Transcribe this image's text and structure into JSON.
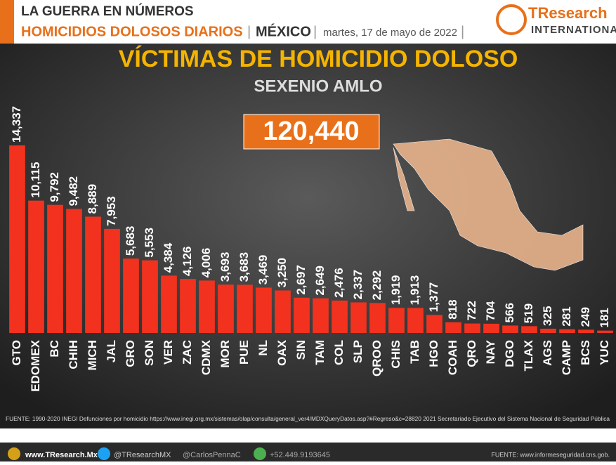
{
  "header": {
    "kicker": "LA GUERRA EN NÚMEROS",
    "topic": "HOMICIDIOS DOLOSOS DIARIOS",
    "country": "MÉXICO",
    "date": "martes, 17 de mayo de 2022",
    "logo": "TResearch",
    "logo_sub": "INTERNATIONAL"
  },
  "chart_data": {
    "type": "bar",
    "title": "VÍCTIMAS DE HOMICIDIO DOLOSO",
    "subtitle": "SEXENIO AMLO",
    "total": "120,440",
    "categories": [
      "GTO",
      "EDOMEX",
      "BC",
      "CHIH",
      "MICH",
      "JAL",
      "GRO",
      "SON",
      "VER",
      "ZAC",
      "CDMX",
      "MOR",
      "PUE",
      "NL",
      "OAX",
      "SIN",
      "TAM",
      "COL",
      "SLP",
      "QROO",
      "CHIS",
      "TAB",
      "HGO",
      "COAH",
      "QRO",
      "NAY",
      "DGO",
      "TLAX",
      "AGS",
      "CAMP",
      "BCS",
      "YUC"
    ],
    "values": [
      14337,
      10115,
      9792,
      9482,
      8889,
      7953,
      5683,
      5553,
      4384,
      4126,
      4006,
      3693,
      3683,
      3469,
      3250,
      2697,
      2649,
      2476,
      2337,
      2292,
      1919,
      1913,
      1377,
      818,
      722,
      704,
      566,
      519,
      325,
      281,
      249,
      181
    ],
    "value_labels": [
      "14,337",
      "10,115",
      "9,792",
      "9,482",
      "8,889",
      "7,953",
      "5,683",
      "5,553",
      "4,384",
      "4,126",
      "4,006",
      "3,693",
      "3,683",
      "3,469",
      "3,250",
      "2,697",
      "2,649",
      "2,476",
      "2,337",
      "2,292",
      "1,919",
      "1,913",
      "1,377",
      "818",
      "722",
      "704",
      "566",
      "519",
      "325",
      "281",
      "249",
      "181"
    ],
    "color": "#f2321e",
    "source": "FUENTE: 1990-2020 INEGI Defunciones por homicidio https://www.inegi.org.mx/sistemas/olap/consulta/general_ver4/MDXQueryDatos.asp?#Regreso&c=28820   2021 Secretariado Ejecutivo del Sistema Nacional de Seguridad Pública"
  },
  "footer": {
    "web": "www.TResearch.Mx",
    "twitter": "@TResearchMX",
    "twitter2": "@CarlosPennaC",
    "phone": "+52.449.9193645",
    "source": "FUENTE: www.informeseguridad.cns.gob."
  }
}
